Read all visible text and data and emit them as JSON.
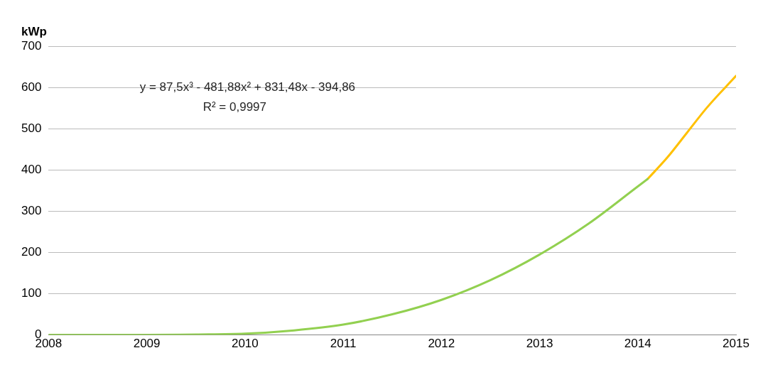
{
  "chart_data": {
    "type": "line",
    "ylabel": "kWp",
    "xlim": [
      2008,
      2015
    ],
    "xticks": [
      2008,
      2009,
      2010,
      2011,
      2012,
      2013,
      2014,
      2015
    ],
    "ylim": [
      0,
      700
    ],
    "yticks": [
      0,
      100,
      200,
      300,
      400,
      500,
      600,
      700
    ],
    "grid": "y",
    "marker": "none",
    "line_style": "solid",
    "legend": false,
    "annotations": [
      "y = 87,5x³ - 481,88x² + 831,48x - 394,86",
      "R² = 0,9997"
    ],
    "series": [
      {
        "color": "#92d050",
        "x": [
          2008,
          2008.5,
          2009,
          2009.5,
          2010,
          2010.5,
          2011,
          2011.5,
          2012,
          2012.5,
          2013,
          2013.5,
          2014,
          2014.1
        ],
        "values": [
          0,
          0,
          0,
          1,
          3,
          11,
          25,
          50,
          85,
          133,
          195,
          270,
          360,
          378
        ]
      },
      {
        "color": "#ffc000",
        "x": [
          2014.1,
          2014.3,
          2014.5,
          2014.7,
          2015
        ],
        "values": [
          378,
          430,
          490,
          550,
          628
        ]
      }
    ]
  }
}
